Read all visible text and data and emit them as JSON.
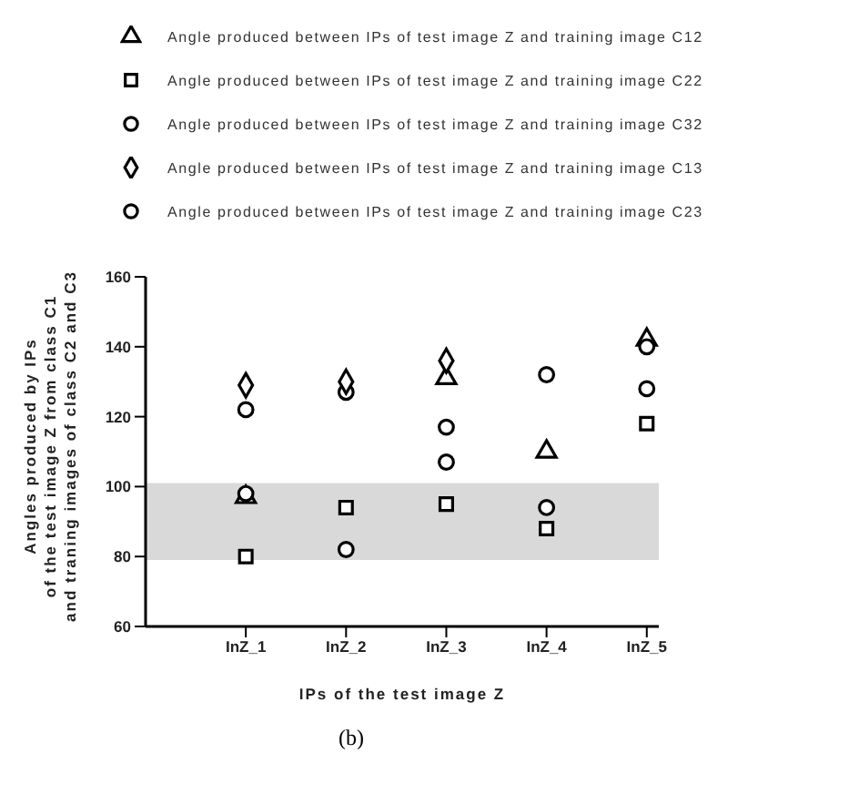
{
  "chart_data": {
    "type": "scatter",
    "xlabel": "IPs of the test image Z",
    "ylabel": "Angles produced by IPs\nof the test image Z from class C1\nand traning images of class C2 and C3",
    "categories": [
      "InZ_1",
      "InZ_2",
      "InZ_3",
      "InZ_4",
      "InZ_5"
    ],
    "series": [
      {
        "name": "Angle produced between IPs of test image Z and training image C12",
        "color": "#000000",
        "marker": "triangle",
        "values": [
          97,
          null,
          131,
          110,
          142
        ]
      },
      {
        "name": "Angle produced between IPs of test image Z and training image C22",
        "color": "#000000",
        "marker": "square",
        "values": [
          80,
          94,
          95,
          88,
          118
        ]
      },
      {
        "name": "Angle produced between IPs of test image Z and training image C32",
        "color": "#000000",
        "marker": "circle",
        "values": [
          122,
          127,
          117,
          132,
          140
        ]
      },
      {
        "name": "Angle produced between IPs of test image Z and training image C13",
        "color": "#000000",
        "marker": "diamond",
        "values": [
          129,
          130,
          136,
          null,
          null
        ]
      },
      {
        "name": "Angle produced between IPs of test image Z and training image C23",
        "color": "#000000",
        "marker": "circle",
        "values": [
          98,
          82,
          107,
          94,
          128
        ]
      }
    ],
    "ylim": [
      60,
      160
    ],
    "yticks": [
      60,
      80,
      100,
      120,
      140,
      160
    ],
    "grid": false,
    "legend": "top",
    "bands": [
      {
        "axis": "y",
        "from": 79,
        "to": 101,
        "color": "#d9d9d9"
      }
    ],
    "annotations": [
      "(b)"
    ]
  }
}
